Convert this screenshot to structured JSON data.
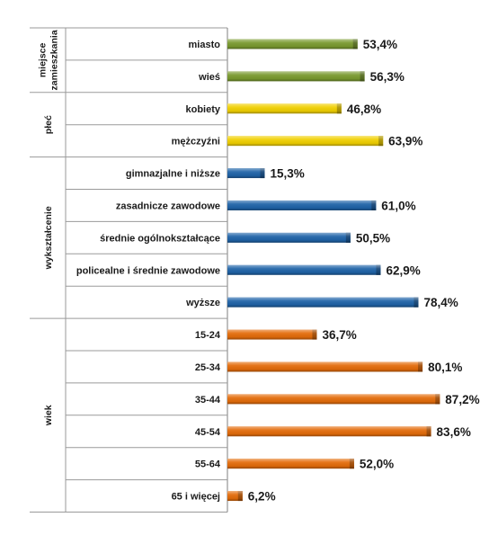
{
  "header_fragment": "",
  "colors": {
    "green": "#7a9a2f",
    "yellow": "#f1d000",
    "blue": "#1f63a8",
    "orange": "#e46c0a"
  },
  "chart_data": {
    "type": "bar",
    "orientation": "horizontal",
    "xlim": [
      0,
      100
    ],
    "grid": false,
    "legend": "none",
    "groups": [
      {
        "name": "miejsce zamieszkania",
        "name_lines": [
          "miejsce",
          "zamieszkania"
        ],
        "color": "green",
        "items": [
          {
            "category": "miasto",
            "value": 53.4,
            "label": "53,4%"
          },
          {
            "category": "wieś",
            "value": 56.3,
            "label": "56,3%"
          }
        ]
      },
      {
        "name": "płeć",
        "name_lines": [
          "płeć"
        ],
        "color": "yellow",
        "items": [
          {
            "category": "kobiety",
            "value": 46.8,
            "label": "46,8%"
          },
          {
            "category": "mężczyźni",
            "value": 63.9,
            "label": "63,9%"
          }
        ]
      },
      {
        "name": "wykształcenie",
        "name_lines": [
          "wykształcenie"
        ],
        "color": "blue",
        "items": [
          {
            "category": "gimnazjalne i niższe",
            "value": 15.3,
            "label": "15,3%"
          },
          {
            "category": "zasadnicze zawodowe",
            "value": 61.0,
            "label": "61,0%"
          },
          {
            "category": "średnie ogólnokształcące",
            "value": 50.5,
            "label": "50,5%"
          },
          {
            "category": "policealne i średnie zawodowe",
            "value": 62.9,
            "label": "62,9%"
          },
          {
            "category": "wyższe",
            "value": 78.4,
            "label": "78,4%"
          }
        ]
      },
      {
        "name": "wiek",
        "name_lines": [
          "wiek"
        ],
        "color": "orange",
        "items": [
          {
            "category": "15-24",
            "value": 36.7,
            "label": "36,7%"
          },
          {
            "category": "25-34",
            "value": 80.1,
            "label": "80,1%"
          },
          {
            "category": "35-44",
            "value": 87.2,
            "label": "87,2%"
          },
          {
            "category": "45-54",
            "value": 83.6,
            "label": "83,6%"
          },
          {
            "category": "55-64",
            "value": 52.0,
            "label": "52,0%"
          },
          {
            "category": "65 i więcej",
            "value": 6.2,
            "label": "6,2%"
          }
        ]
      }
    ]
  }
}
